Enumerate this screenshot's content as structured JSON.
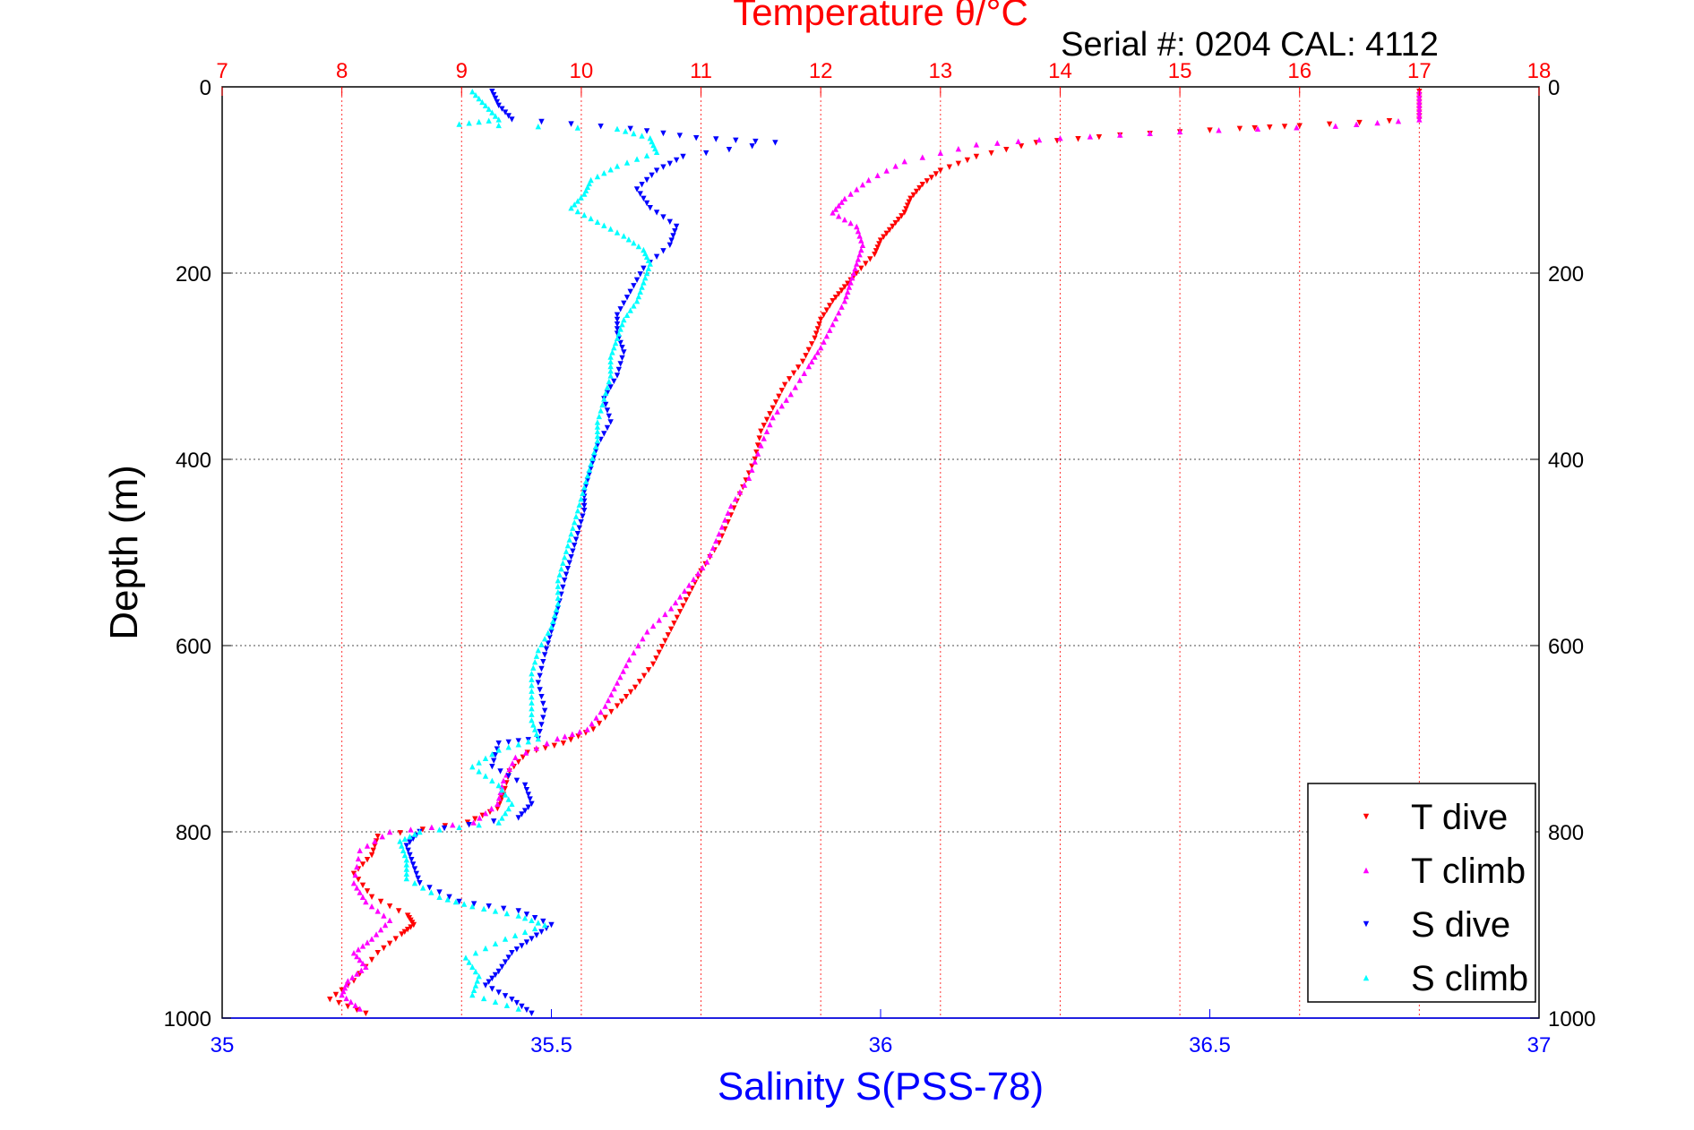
{
  "chart_data": {
    "type": "scatter",
    "title": "Temperature θ/°C",
    "subtitle": "Serial #: 0204  CAL: 4112",
    "ylabel": "Depth (m)",
    "xlabel": "Salinity S(PSS-78)",
    "top_axis": {
      "label": "Temperature θ/°C",
      "range": [
        7,
        18
      ],
      "ticks": [
        "7",
        "8",
        "9",
        "10",
        "11",
        "12",
        "13",
        "14",
        "15",
        "16",
        "17",
        "18"
      ],
      "color": "#ff0000"
    },
    "bottom_axis": {
      "label": "Salinity S(PSS-78)",
      "range": [
        35,
        37
      ],
      "ticks": [
        "35",
        "35.5",
        "36",
        "36.5",
        "37"
      ],
      "color": "#0000ff"
    },
    "y_axis": {
      "range": [
        0,
        1000
      ],
      "reversed": true,
      "ticks": [
        "0",
        "200",
        "400",
        "600",
        "800",
        "1000"
      ]
    },
    "grid": true,
    "legend_position": "bottom-right",
    "series": [
      {
        "name": "T dive",
        "axis": "temperature",
        "color": "#ff0000",
        "marker": "triangle-down",
        "points": [
          [
            17.0,
            5
          ],
          [
            17.0,
            20
          ],
          [
            17.0,
            35
          ],
          [
            16.0,
            42
          ],
          [
            15.5,
            45
          ],
          [
            14.5,
            52
          ],
          [
            13.8,
            60
          ],
          [
            13.3,
            75
          ],
          [
            13.0,
            90
          ],
          [
            12.85,
            105
          ],
          [
            12.75,
            120
          ],
          [
            12.7,
            135
          ],
          [
            12.6,
            150
          ],
          [
            12.5,
            165
          ],
          [
            12.45,
            180
          ],
          [
            12.3,
            200
          ],
          [
            12.2,
            215
          ],
          [
            12.1,
            230
          ],
          [
            12.0,
            250
          ],
          [
            11.95,
            270
          ],
          [
            11.85,
            295
          ],
          [
            11.7,
            320
          ],
          [
            11.6,
            345
          ],
          [
            11.5,
            370
          ],
          [
            11.45,
            400
          ],
          [
            11.35,
            430
          ],
          [
            11.25,
            460
          ],
          [
            11.15,
            490
          ],
          [
            11.0,
            520
          ],
          [
            10.9,
            545
          ],
          [
            10.8,
            570
          ],
          [
            10.7,
            595
          ],
          [
            10.6,
            620
          ],
          [
            10.45,
            645
          ],
          [
            10.3,
            665
          ],
          [
            10.1,
            690
          ],
          [
            9.85,
            705
          ],
          [
            9.55,
            715
          ],
          [
            9.4,
            735
          ],
          [
            9.35,
            760
          ],
          [
            9.3,
            775
          ],
          [
            9.05,
            790
          ],
          [
            8.3,
            805
          ],
          [
            8.25,
            825
          ],
          [
            8.1,
            845
          ],
          [
            8.25,
            870
          ],
          [
            8.55,
            890
          ],
          [
            8.6,
            900
          ],
          [
            8.5,
            910
          ],
          [
            8.3,
            930
          ],
          [
            8.1,
            960
          ],
          [
            7.9,
            980
          ],
          [
            8.2,
            995
          ]
        ]
      },
      {
        "name": "T climb",
        "axis": "temperature",
        "color": "#ff00ff",
        "marker": "triangle-up",
        "points": [
          [
            17.0,
            5
          ],
          [
            17.0,
            20
          ],
          [
            17.0,
            35
          ],
          [
            16.3,
            42
          ],
          [
            15.0,
            48
          ],
          [
            14.0,
            55
          ],
          [
            13.3,
            62
          ],
          [
            12.7,
            80
          ],
          [
            12.4,
            100
          ],
          [
            12.2,
            120
          ],
          [
            12.1,
            135
          ],
          [
            12.3,
            150
          ],
          [
            12.35,
            170
          ],
          [
            12.3,
            190
          ],
          [
            12.25,
            210
          ],
          [
            12.2,
            230
          ],
          [
            12.1,
            255
          ],
          [
            12.0,
            280
          ],
          [
            11.9,
            300
          ],
          [
            11.75,
            330
          ],
          [
            11.6,
            355
          ],
          [
            11.5,
            385
          ],
          [
            11.4,
            420
          ],
          [
            11.25,
            450
          ],
          [
            11.15,
            480
          ],
          [
            11.05,
            510
          ],
          [
            10.9,
            535
          ],
          [
            10.75,
            560
          ],
          [
            10.55,
            585
          ],
          [
            10.4,
            615
          ],
          [
            10.3,
            640
          ],
          [
            10.2,
            665
          ],
          [
            10.05,
            690
          ],
          [
            9.8,
            700
          ],
          [
            9.45,
            720
          ],
          [
            9.35,
            745
          ],
          [
            9.3,
            770
          ],
          [
            9.1,
            790
          ],
          [
            8.4,
            800
          ],
          [
            8.15,
            820
          ],
          [
            8.1,
            855
          ],
          [
            8.2,
            875
          ],
          [
            8.4,
            895
          ],
          [
            8.25,
            915
          ],
          [
            8.1,
            930
          ],
          [
            8.2,
            945
          ],
          [
            8.05,
            960
          ],
          [
            8.0,
            975
          ],
          [
            8.15,
            990
          ]
        ]
      },
      {
        "name": "S dive",
        "axis": "salinity",
        "color": "#0000ff",
        "marker": "triangle-down",
        "points": [
          [
            35.41,
            5
          ],
          [
            35.42,
            20
          ],
          [
            35.44,
            35
          ],
          [
            35.62,
            45
          ],
          [
            35.72,
            55
          ],
          [
            35.84,
            60
          ],
          [
            35.7,
            75
          ],
          [
            35.66,
            90
          ],
          [
            35.63,
            110
          ],
          [
            35.65,
            130
          ],
          [
            35.69,
            150
          ],
          [
            35.68,
            170
          ],
          [
            35.64,
            195
          ],
          [
            35.62,
            220
          ],
          [
            35.6,
            245
          ],
          [
            35.6,
            265
          ],
          [
            35.61,
            285
          ],
          [
            35.6,
            310
          ],
          [
            35.58,
            335
          ],
          [
            35.59,
            360
          ],
          [
            35.57,
            385
          ],
          [
            35.56,
            410
          ],
          [
            35.55,
            435
          ],
          [
            35.55,
            455
          ],
          [
            35.54,
            480
          ],
          [
            35.53,
            505
          ],
          [
            35.52,
            530
          ],
          [
            35.51,
            560
          ],
          [
            35.5,
            585
          ],
          [
            35.49,
            610
          ],
          [
            35.48,
            640
          ],
          [
            35.49,
            670
          ],
          [
            35.48,
            700
          ],
          [
            35.42,
            705
          ],
          [
            35.41,
            730
          ],
          [
            35.46,
            750
          ],
          [
            35.47,
            770
          ],
          [
            35.45,
            785
          ],
          [
            35.3,
            800
          ],
          [
            35.28,
            815
          ],
          [
            35.29,
            835
          ],
          [
            35.3,
            855
          ],
          [
            35.36,
            875
          ],
          [
            35.45,
            885
          ],
          [
            35.5,
            900
          ],
          [
            35.47,
            915
          ],
          [
            35.44,
            930
          ],
          [
            35.42,
            950
          ],
          [
            35.4,
            965
          ],
          [
            35.44,
            980
          ],
          [
            35.47,
            995
          ]
        ]
      },
      {
        "name": "S climb",
        "axis": "salinity",
        "color": "#00ffff",
        "marker": "triangle-up",
        "points": [
          [
            35.38,
            5
          ],
          [
            35.4,
            20
          ],
          [
            35.42,
            35
          ],
          [
            35.36,
            40
          ],
          [
            35.6,
            45
          ],
          [
            35.65,
            55
          ],
          [
            35.66,
            70
          ],
          [
            35.6,
            85
          ],
          [
            35.56,
            100
          ],
          [
            35.55,
            115
          ],
          [
            35.53,
            130
          ],
          [
            35.57,
            145
          ],
          [
            35.61,
            160
          ],
          [
            35.64,
            175
          ],
          [
            35.65,
            190
          ],
          [
            35.64,
            210
          ],
          [
            35.63,
            230
          ],
          [
            35.61,
            250
          ],
          [
            35.6,
            270
          ],
          [
            35.59,
            290
          ],
          [
            35.59,
            310
          ],
          [
            35.58,
            335
          ],
          [
            35.57,
            360
          ],
          [
            35.57,
            380
          ],
          [
            35.56,
            405
          ],
          [
            35.55,
            430
          ],
          [
            35.54,
            455
          ],
          [
            35.53,
            480
          ],
          [
            35.52,
            505
          ],
          [
            35.51,
            530
          ],
          [
            35.51,
            555
          ],
          [
            35.5,
            580
          ],
          [
            35.48,
            605
          ],
          [
            35.47,
            630
          ],
          [
            35.47,
            655
          ],
          [
            35.47,
            680
          ],
          [
            35.48,
            700
          ],
          [
            35.42,
            712
          ],
          [
            35.38,
            730
          ],
          [
            35.42,
            750
          ],
          [
            35.44,
            770
          ],
          [
            35.42,
            790
          ],
          [
            35.3,
            800
          ],
          [
            35.27,
            810
          ],
          [
            35.28,
            830
          ],
          [
            35.28,
            850
          ],
          [
            35.33,
            870
          ],
          [
            35.38,
            880
          ],
          [
            35.45,
            890
          ],
          [
            35.49,
            900
          ],
          [
            35.43,
            915
          ],
          [
            35.37,
            935
          ],
          [
            35.39,
            955
          ],
          [
            35.38,
            975
          ],
          [
            35.45,
            990
          ]
        ]
      }
    ]
  }
}
